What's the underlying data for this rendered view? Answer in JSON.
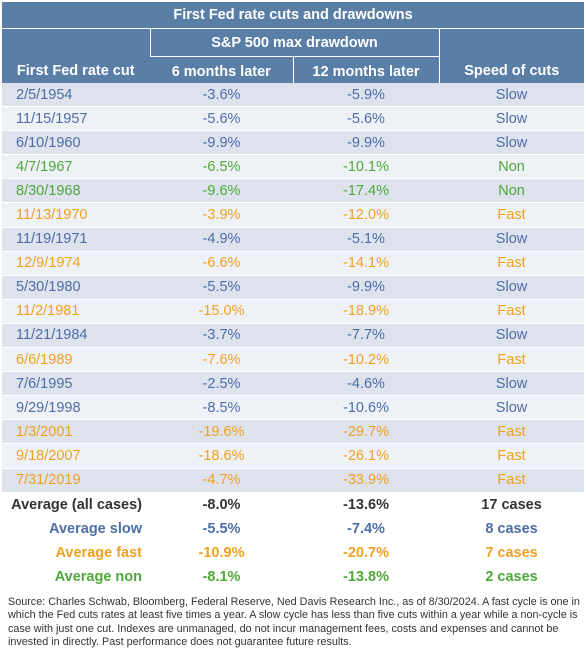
{
  "colors": {
    "header_bg": "#5a7fa7",
    "slow": "#4c6ea8",
    "non": "#4fa83a",
    "fast": "#f0a020",
    "all": "#333333"
  },
  "table": {
    "title": "First Fed rate cuts and drawdowns",
    "group_header": "S&P 500 max drawdown",
    "columns": [
      "First Fed rate cut",
      "6 months later",
      "12 months later",
      "Speed of cuts"
    ],
    "rows": [
      {
        "date": "2/5/1954",
        "six": "-3.6%",
        "twelve": "-5.9%",
        "speed": "Slow",
        "color": "#4c6ea8"
      },
      {
        "date": "11/15/1957",
        "six": "-5.6%",
        "twelve": "-5.6%",
        "speed": "Slow",
        "color": "#4c6ea8"
      },
      {
        "date": "6/10/1960",
        "six": "-9.9%",
        "twelve": "-9.9%",
        "speed": "Slow",
        "color": "#4c6ea8"
      },
      {
        "date": "4/7/1967",
        "six": "-6.5%",
        "twelve": "-10.1%",
        "speed": "Non",
        "color": "#4fa83a"
      },
      {
        "date": "8/30/1968",
        "six": "-9.6%",
        "twelve": "-17.4%",
        "speed": "Non",
        "color": "#4fa83a"
      },
      {
        "date": "11/13/1970",
        "six": "-3.9%",
        "twelve": "-12.0%",
        "speed": "Fast",
        "color": "#f0a020"
      },
      {
        "date": "11/19/1971",
        "six": "-4.9%",
        "twelve": "-5.1%",
        "speed": "Slow",
        "color": "#4c6ea8"
      },
      {
        "date": "12/9/1974",
        "six": "-6.6%",
        "twelve": "-14.1%",
        "speed": "Fast",
        "color": "#f0a020"
      },
      {
        "date": "5/30/1980",
        "six": "-5.5%",
        "twelve": "-9.9%",
        "speed": "Slow",
        "color": "#4c6ea8"
      },
      {
        "date": "11/2/1981",
        "six": "-15.0%",
        "twelve": "-18.9%",
        "speed": "Fast",
        "color": "#f0a020"
      },
      {
        "date": "11/21/1984",
        "six": "-3.7%",
        "twelve": "-7.7%",
        "speed": "Slow",
        "color": "#4c6ea8"
      },
      {
        "date": "6/6/1989",
        "six": "-7.6%",
        "twelve": "-10.2%",
        "speed": "Fast",
        "color": "#f0a020"
      },
      {
        "date": "7/6/1995",
        "six": "-2.5%",
        "twelve": "-4.6%",
        "speed": "Slow",
        "color": "#4c6ea8"
      },
      {
        "date": "9/29/1998",
        "six": "-8.5%",
        "twelve": "-10.6%",
        "speed": "Slow",
        "color": "#4c6ea8"
      },
      {
        "date": "1/3/2001",
        "six": "-19.6%",
        "twelve": "-29.7%",
        "speed": "Fast",
        "color": "#f0a020"
      },
      {
        "date": "9/18/2007",
        "six": "-18.6%",
        "twelve": "-26.1%",
        "speed": "Fast",
        "color": "#f0a020"
      },
      {
        "date": "7/31/2019",
        "six": "-4.7%",
        "twelve": "-33.9%",
        "speed": "Fast",
        "color": "#f0a020"
      }
    ],
    "summary": [
      {
        "label": "Average (all cases)",
        "six": "-8.0%",
        "twelve": "-13.6%",
        "cases": "17 cases",
        "color": "#333333"
      },
      {
        "label": "Average slow",
        "six": "-5.5%",
        "twelve": "-7.4%",
        "cases": "8 cases",
        "color": "#4c6ea8"
      },
      {
        "label": "Average fast",
        "six": "-10.9%",
        "twelve": "-20.7%",
        "cases": "7 cases",
        "color": "#f0a020"
      },
      {
        "label": "Average non",
        "six": "-8.1%",
        "twelve": "-13.8%",
        "cases": "2 cases",
        "color": "#4fa83a"
      }
    ]
  },
  "source": "Source: Charles Schwab, Bloomberg, Federal Reserve, Ned Davis Research Inc., as of 8/30/2024. A fast cycle is one in which the Fed cuts rates at least five times a year. A slow cycle has less than five cuts within a year while a non-cycle is case with just one cut. Indexes are unmanaged, do not incur management fees, costs and expenses and cannot be invested in directly. Past performance does not guarantee future results."
}
